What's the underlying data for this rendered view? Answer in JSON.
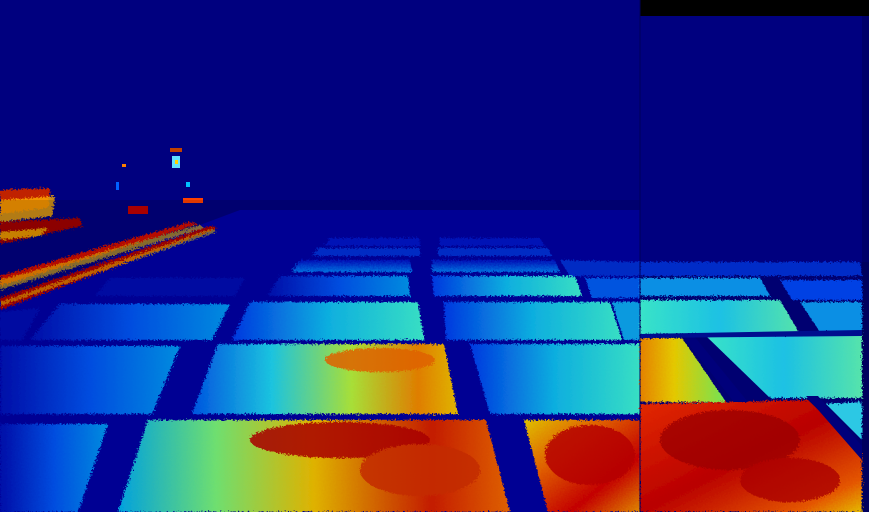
{
  "image": {
    "kind": "thermal-false-color",
    "subject": "rooftop-solar-panel-array",
    "colormap": "jet",
    "palette": {
      "cold": "#00007f",
      "cool": "#0000ff",
      "mid_low": "#0080ff",
      "mid": "#00ffff",
      "mid_high": "#ffff00",
      "warm": "#ff8000",
      "hot": "#ff0000",
      "hottest": "#7f0000"
    },
    "composite": {
      "left_frame": "wide-view",
      "right_frame": "zoomed-view",
      "top_right_strip": "black"
    }
  }
}
